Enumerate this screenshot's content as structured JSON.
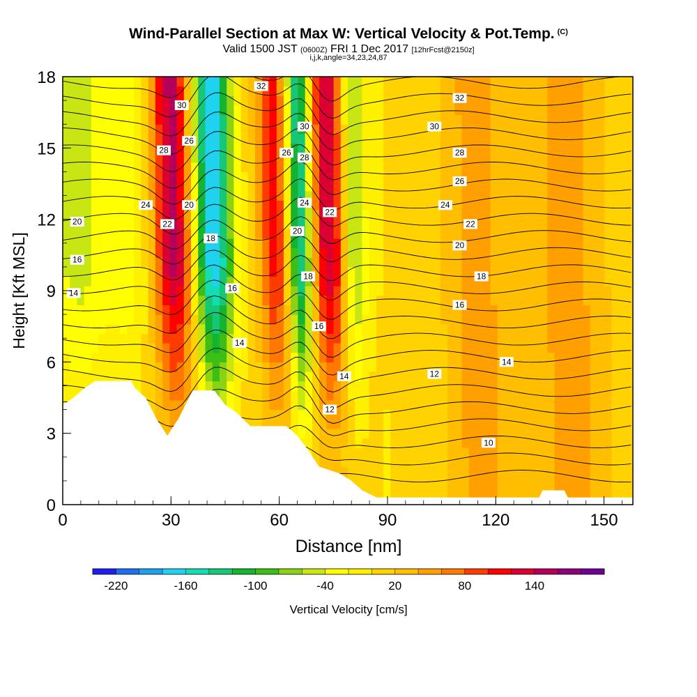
{
  "header": {
    "title": "Wind-Parallel Section at Max W: Vertical Velocity & Pot.Temp.",
    "copyright": "(C)",
    "valid_prefix": "Valid 1500 JST",
    "valid_utc": "(0600Z)",
    "valid_date": "FRI 1 Dec 2017",
    "forecast": "[12hrFcst@2150z]",
    "indices": "i,j,k,angle=34,23,24,87"
  },
  "colorbar": {
    "label": "Vertical Velocity [cm/s]",
    "tick_labels": [
      "-220",
      "-160",
      "-100",
      "-40",
      "20",
      "80",
      "140"
    ],
    "colors": [
      "#1e1ef0",
      "#1e6ef0",
      "#1ea0f0",
      "#1ed2f0",
      "#14dcb4",
      "#14c878",
      "#14b432",
      "#3cbe14",
      "#8cd214",
      "#c8e614",
      "#ffff00",
      "#fff000",
      "#ffd200",
      "#ffbe00",
      "#ffa000",
      "#ff7800",
      "#ff3c00",
      "#ff0000",
      "#dc0032",
      "#b4005a",
      "#8c0078",
      "#6e0096"
    ]
  },
  "chart_data": {
    "type": "heatmap",
    "title": "Wind-Parallel Section at Max W: Vertical Velocity & Pot.Temp.",
    "xlabel": "Distance [nm]",
    "ylabel": "Height [Kft MSL]",
    "xlim": [
      0,
      158
    ],
    "ylim": [
      0,
      18
    ],
    "x_ticks": [
      0,
      30,
      60,
      90,
      120,
      150
    ],
    "y_ticks": [
      0,
      3,
      6,
      9,
      12,
      15,
      18
    ],
    "grid": false,
    "fill_variable": "Vertical Velocity [cm/s]",
    "fill_levels": [
      -220,
      160,
      20
    ],
    "vertical_velocity_bands": [
      {
        "x_center": 4,
        "x_width": 12,
        "value": -60
      },
      {
        "x_center": 18,
        "x_width": 10,
        "value": -40
      },
      {
        "x_center": 31,
        "x_width": 8,
        "value": 140
      },
      {
        "x_center": 42,
        "x_width": 8,
        "value": -190
      },
      {
        "x_center": 59,
        "x_width": 6,
        "value": 100
      },
      {
        "x_center": 66,
        "x_width": 5,
        "value": -160
      },
      {
        "x_center": 74,
        "x_width": 7,
        "value": 130
      },
      {
        "x_center": 81,
        "x_width": 5,
        "value": -80
      },
      {
        "x_center": 89,
        "x_width": 5,
        "value": -10
      },
      {
        "x_center": 115,
        "x_width": 12,
        "value": 40
      },
      {
        "x_center": 140,
        "x_width": 14,
        "value": 40
      }
    ],
    "contour_variable": "Potential Temperature",
    "contour_labels": [
      {
        "x": 4,
        "y": 11.9,
        "label": "20"
      },
      {
        "x": 4,
        "y": 10.3,
        "label": "16"
      },
      {
        "x": 3,
        "y": 8.9,
        "label": "14"
      },
      {
        "x": 23,
        "y": 12.6,
        "label": "24"
      },
      {
        "x": 29,
        "y": 11.8,
        "label": "22"
      },
      {
        "x": 28,
        "y": 14.9,
        "label": "28"
      },
      {
        "x": 33,
        "y": 16.8,
        "label": "30"
      },
      {
        "x": 35,
        "y": 15.3,
        "label": "26"
      },
      {
        "x": 35,
        "y": 12.6,
        "label": "20"
      },
      {
        "x": 41,
        "y": 11.2,
        "label": "18"
      },
      {
        "x": 47,
        "y": 9.1,
        "label": "16"
      },
      {
        "x": 49,
        "y": 6.8,
        "label": "14"
      },
      {
        "x": 55,
        "y": 17.6,
        "label": "32"
      },
      {
        "x": 62,
        "y": 14.8,
        "label": "26"
      },
      {
        "x": 67,
        "y": 15.9,
        "label": "30"
      },
      {
        "x": 67,
        "y": 14.6,
        "label": "28"
      },
      {
        "x": 67,
        "y": 12.7,
        "label": "24"
      },
      {
        "x": 65,
        "y": 11.5,
        "label": "20"
      },
      {
        "x": 68,
        "y": 9.6,
        "label": "18"
      },
      {
        "x": 71,
        "y": 7.5,
        "label": "16"
      },
      {
        "x": 74,
        "y": 12.3,
        "label": "22"
      },
      {
        "x": 78,
        "y": 5.4,
        "label": "14"
      },
      {
        "x": 74,
        "y": 4,
        "label": "12"
      },
      {
        "x": 110,
        "y": 17.1,
        "label": "32"
      },
      {
        "x": 103,
        "y": 15.9,
        "label": "30"
      },
      {
        "x": 110,
        "y": 14.8,
        "label": "28"
      },
      {
        "x": 110,
        "y": 13.6,
        "label": "26"
      },
      {
        "x": 106,
        "y": 12.6,
        "label": "24"
      },
      {
        "x": 113,
        "y": 11.8,
        "label": "22"
      },
      {
        "x": 110,
        "y": 10.9,
        "label": "20"
      },
      {
        "x": 116,
        "y": 9.6,
        "label": "18"
      },
      {
        "x": 110,
        "y": 8.4,
        "label": "16"
      },
      {
        "x": 123,
        "y": 6.0,
        "label": "14"
      },
      {
        "x": 103,
        "y": 5.5,
        "label": "12"
      },
      {
        "x": 118,
        "y": 2.6,
        "label": "10"
      }
    ],
    "terrain": [
      {
        "x": 0,
        "y": 4.2
      },
      {
        "x": 3,
        "y": 4.5
      },
      {
        "x": 6,
        "y": 4.9
      },
      {
        "x": 9,
        "y": 5.2
      },
      {
        "x": 12,
        "y": 5.2
      },
      {
        "x": 19,
        "y": 5.2
      },
      {
        "x": 20,
        "y": 4.9
      },
      {
        "x": 23,
        "y": 4.5
      },
      {
        "x": 26,
        "y": 3.6
      },
      {
        "x": 29,
        "y": 2.9
      },
      {
        "x": 32,
        "y": 3.6
      },
      {
        "x": 35,
        "y": 4.5
      },
      {
        "x": 36,
        "y": 4.8
      },
      {
        "x": 42,
        "y": 4.8
      },
      {
        "x": 45,
        "y": 4.2
      },
      {
        "x": 48,
        "y": 3.9
      },
      {
        "x": 50,
        "y": 3.6
      },
      {
        "x": 52,
        "y": 3.3
      },
      {
        "x": 56,
        "y": 3.3
      },
      {
        "x": 62,
        "y": 3.3
      },
      {
        "x": 65,
        "y": 2.9
      },
      {
        "x": 68,
        "y": 2.3
      },
      {
        "x": 71,
        "y": 1.6
      },
      {
        "x": 77,
        "y": 1.3
      },
      {
        "x": 80,
        "y": 1.0
      },
      {
        "x": 83,
        "y": 0.6
      },
      {
        "x": 87,
        "y": 0.3
      },
      {
        "x": 132,
        "y": 0.3
      },
      {
        "x": 133,
        "y": 0.6
      },
      {
        "x": 139,
        "y": 0.6
      },
      {
        "x": 140,
        "y": 0.3
      },
      {
        "x": 158,
        "y": 0.3
      }
    ]
  }
}
